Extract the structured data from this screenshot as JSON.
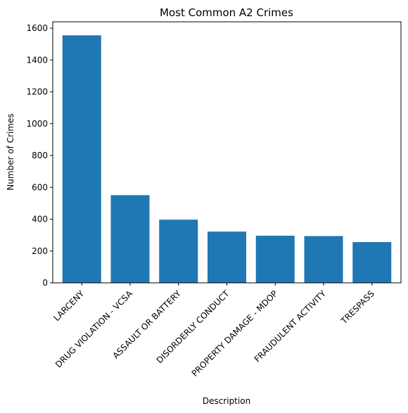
{
  "chart_data": {
    "type": "bar",
    "title": "Most Common A2 Crimes",
    "xlabel": "Description",
    "ylabel": "Number of Crimes",
    "ylim": [
      0,
      1640
    ],
    "yticks": [
      0,
      200,
      400,
      600,
      800,
      1000,
      1200,
      1400,
      1600
    ],
    "grid": false,
    "bar_color": "#1f77b4",
    "categories": [
      "LARCENY",
      "DRUG VIOLATION - VCSA",
      "ASSAULT OR BATTERY",
      "DISORDERLY CONDUCT",
      "PROPERTY DAMAGE - MDOP",
      "FRAUDULENT ACTIVITY",
      "TRESPASS"
    ],
    "values": [
      1555,
      551,
      397,
      322,
      296,
      294,
      256
    ]
  }
}
